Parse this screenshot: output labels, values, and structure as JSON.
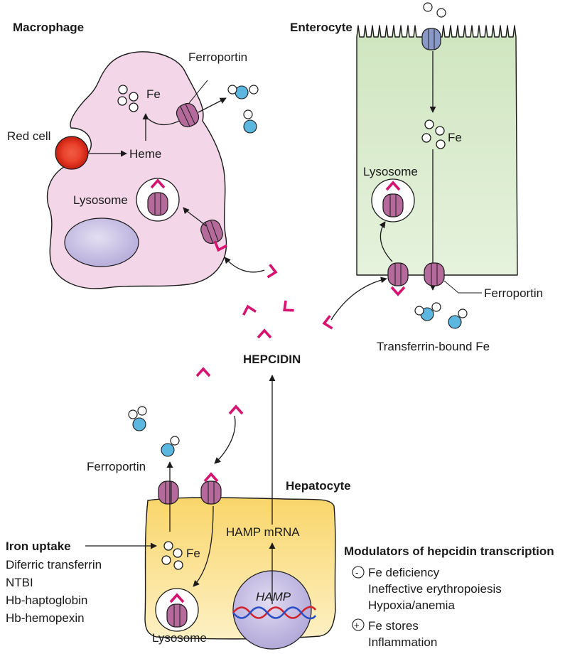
{
  "labels": {
    "macrophage": "Macrophage",
    "enterocyte": "Enterocyte",
    "hepatocyte": "Hepatocyte",
    "hepcidin": "HEPCIDIN",
    "ferroportin": "Ferroportin",
    "fe": "Fe",
    "heme": "Heme",
    "red_cell": "Red cell",
    "lysosome": "Lysosome",
    "transferrin_bound_fe": "Transferrin-bound Fe",
    "hamp_mrna": "HAMP mRNA",
    "hamp": "HAMP"
  },
  "iron_uptake": {
    "title": "Iron uptake",
    "items": [
      "Diferric transferrin",
      "NTBI",
      "Hb-haptoglobin",
      "Hb-hemopexin"
    ]
  },
  "modulators": {
    "title": "Modulators of hepcidin transcription",
    "negative_symbol": "-",
    "negative": [
      "Fe deficiency",
      "Ineffective erythropoiesis",
      "Hypoxia/anemia"
    ],
    "positive_symbol": "+",
    "positive": [
      "Fe stores",
      "Inflammation"
    ]
  },
  "colors": {
    "macrophage": "#f2d6e8",
    "enterocyte": "#dcecd0",
    "hepatocyte": "#fbe08a",
    "ferroportin": "#b06a9a",
    "hepcidin": "#d6136f",
    "transferrin": "#5bb6e0",
    "nucleus": "#c5bde0",
    "red_cell": "#e8432e"
  }
}
